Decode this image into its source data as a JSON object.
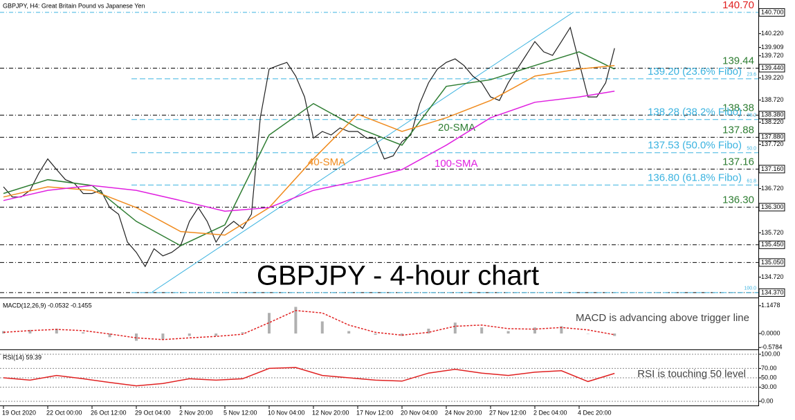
{
  "chart_data": [
    {
      "type": "line",
      "title": "GBPJPY, H4:  Great Britain Pound vs Japanese Yen",
      "heading": "GBPJPY - 4-hour chart",
      "categories": [
        "19 Oct 2020",
        null,
        null,
        null,
        null,
        "22 Oct 00:00",
        null,
        null,
        null,
        null,
        "26 Oct 12:00",
        null,
        null,
        null,
        null,
        "29 Oct 04:00",
        null,
        null,
        null,
        null,
        "2 Nov 20:00",
        null,
        null,
        null,
        null,
        "5 Nov 12:00",
        null,
        null,
        null,
        null,
        "10 Nov 04:00",
        null,
        null,
        null,
        null,
        "12 Nov 20:00",
        null,
        null,
        null,
        null,
        "17 Nov 12:00",
        null,
        null,
        null,
        null,
        "20 Nov 04:00",
        null,
        null,
        null,
        null,
        "24 Nov 20:00",
        null,
        null,
        null,
        null,
        "27 Nov 12:00",
        null,
        null,
        null,
        null,
        "2 Dec 04:00",
        null,
        null,
        null,
        null,
        "4 Dec 20:00",
        null,
        null,
        null,
        null
      ],
      "series": [
        {
          "type": "line",
          "color": "#1f1f1f",
          "values": [
            136.76,
            136.53,
            136.53,
            136.68,
            137.07,
            137.39,
            137.15,
            136.92,
            136.84,
            136.61,
            136.61,
            136.68,
            136.29,
            136.14,
            135.51,
            135.28,
            134.96,
            135.36,
            135.2,
            135.28,
            135.43,
            135.98,
            136.29,
            135.98,
            135.51,
            135.82,
            135.98,
            135.82,
            136.14,
            138.32,
            139.42,
            139.5,
            139.57,
            139.26,
            138.79,
            137.86,
            138.01,
            137.93,
            138.09,
            138.01,
            138.01,
            137.86,
            137.86,
            137.39,
            137.46,
            137.78,
            137.93,
            138.64,
            139.11,
            139.42,
            139.57,
            139.65,
            139.5,
            139.26,
            139.11,
            138.79,
            138.71,
            139.11,
            139.42,
            139.73,
            140.04,
            139.81,
            139.73,
            140.04,
            140.36,
            139.57,
            138.79,
            138.79,
            139.11,
            139.89
          ]
        },
        {
          "type": "line",
          "name": "20-SMA",
          "color": "#2e7d32",
          "x": [
            0,
            5,
            10,
            15,
            20,
            25,
            30,
            35,
            40,
            45,
            50,
            55,
            60,
            65,
            69
          ],
          "values": [
            136.61,
            136.92,
            136.79,
            135.98,
            135.43,
            135.9,
            137.93,
            138.64,
            138.09,
            137.7,
            139.03,
            139.18,
            139.5,
            139.81,
            139.42
          ]
        },
        {
          "type": "line",
          "name": "40-SMA",
          "color": "#f08a1c",
          "x": [
            0,
            5,
            10,
            15,
            20,
            25,
            30,
            35,
            40,
            45,
            50,
            55,
            60,
            65,
            69
          ],
          "values": [
            136.53,
            136.76,
            136.68,
            136.29,
            135.75,
            135.67,
            136.29,
            137.39,
            138.4,
            138.01,
            138.32,
            138.71,
            139.26,
            139.42,
            139.5
          ]
        },
        {
          "type": "line",
          "name": "100-SMA",
          "color": "#e020e0",
          "x": [
            0,
            5,
            10,
            15,
            20,
            25,
            30,
            35,
            40,
            45,
            50,
            55,
            60,
            65,
            69
          ],
          "values": [
            136.45,
            136.68,
            136.79,
            136.68,
            136.45,
            136.21,
            136.29,
            136.68,
            136.89,
            137.15,
            137.7,
            138.32,
            138.67,
            138.79,
            138.92
          ]
        }
      ],
      "ylim": [
        134.29,
        140.98
      ],
      "yticks": [
        {
          "value": 140.7,
          "label": "140.700"
        },
        {
          "value": 140.22,
          "label": "140.220"
        },
        139.909,
        {
          "value": 139.72,
          "label": "139.720"
        },
        {
          "value": 139.44,
          "label": "139.440"
        },
        {
          "value": 139.22,
          "label": "139.220"
        },
        {
          "value": 138.72,
          "label": "138.720"
        },
        {
          "value": 138.38,
          "label": "138.380"
        },
        {
          "value": 138.22,
          "label": "138.220"
        },
        {
          "value": 137.88,
          "label": "137.880"
        },
        {
          "value": 137.72,
          "label": "137.720"
        },
        {
          "value": 137.16,
          "label": "137.160"
        },
        {
          "value": 136.72,
          "label": "136.720"
        },
        {
          "value": 136.3,
          "label": "136.300"
        },
        {
          "value": 135.72,
          "label": "135.720"
        },
        {
          "value": 135.45,
          "label": "135.450"
        },
        {
          "value": 135.05,
          "label": "135.050"
        },
        {
          "value": 134.72,
          "label": "134.720"
        },
        {
          "value": 134.37,
          "label": "134.370"
        }
      ],
      "levels": [
        {
          "value": 140.7,
          "label": "140.70",
          "color": "#e02020"
        },
        {
          "value": 139.44,
          "label": "139.44",
          "color": "#2e7d32"
        },
        {
          "value": 138.38,
          "label": "138.38",
          "color": "#2e7d32"
        },
        {
          "value": 137.88,
          "label": "137.88",
          "color": "#2e7d32"
        },
        {
          "value": 137.16,
          "label": "137.16",
          "color": "#2e7d32"
        },
        {
          "value": 136.3,
          "label": "136.30",
          "color": "#2e7d32"
        },
        {
          "value": 135.45
        },
        {
          "value": 135.05
        },
        {
          "value": 134.37
        }
      ],
      "fibo_levels": [
        {
          "value": 139.2,
          "label": "139.20 (23.6% Fibo)",
          "ratio_label": "23.6"
        },
        {
          "value": 138.28,
          "label": "138.28 (38.2% Fibo)",
          "ratio_label": "38.2"
        },
        {
          "value": 137.53,
          "label": "137.53 (50.0% Fibo)",
          "ratio_label": "50.0"
        },
        {
          "value": 136.8,
          "label": "136.80 (61.8% Fibo)",
          "ratio_label": "61.8"
        },
        {
          "value": 134.37,
          "ratio_label": "100.0"
        }
      ],
      "fibo_color": "#3bb3e0"
    },
    {
      "type": "bar",
      "title": "MACD(12,26,9) -0.0532 -0.1455",
      "annotation": "MACD is advancing above trigger line",
      "series": [
        {
          "type": "bar",
          "color": "#b0b0b0",
          "x": [
            0,
            3,
            6,
            9,
            12,
            15,
            18,
            21,
            24,
            27,
            30,
            33,
            36,
            39,
            42,
            45,
            48,
            51,
            54,
            57,
            60,
            63,
            66,
            69
          ],
          "values": [
            0.1,
            0.15,
            0.2,
            0.05,
            -0.15,
            -0.3,
            -0.25,
            -0.1,
            -0.1,
            0.05,
            0.85,
            1.1,
            0.5,
            0.1,
            -0.05,
            -0.1,
            0.2,
            0.45,
            0.25,
            0.1,
            0.25,
            0.3,
            0.0,
            -0.1
          ]
        },
        {
          "type": "line",
          "dashed": true,
          "color": "#e02020",
          "x": [
            0,
            3,
            6,
            9,
            12,
            15,
            18,
            21,
            24,
            27,
            30,
            33,
            36,
            39,
            42,
            45,
            48,
            51,
            54,
            57,
            60,
            63,
            66,
            69
          ],
          "values": [
            0.05,
            0.12,
            0.17,
            0.12,
            -0.02,
            -0.18,
            -0.25,
            -0.18,
            -0.12,
            -0.03,
            0.45,
            0.95,
            0.85,
            0.35,
            0.05,
            -0.07,
            0.05,
            0.3,
            0.35,
            0.2,
            0.18,
            0.25,
            0.15,
            -0.05
          ]
        }
      ],
      "ylim": [
        -0.6,
        1.4
      ],
      "yticks": [
        1.1478,
        {
          "value": 0,
          "label": "0.0000"
        },
        -0.5784
      ]
    },
    {
      "type": "line",
      "title": "RSI(14) 59.39",
      "annotation": "RSI is touching 50 level",
      "series": [
        {
          "type": "line",
          "color": "#e02020",
          "x": [
            0,
            3,
            6,
            9,
            12,
            15,
            18,
            21,
            24,
            27,
            30,
            33,
            36,
            39,
            42,
            45,
            48,
            51,
            54,
            57,
            60,
            63,
            66,
            69
          ],
          "values": [
            50,
            45,
            55,
            48,
            40,
            33,
            38,
            48,
            45,
            48,
            70,
            72,
            55,
            50,
            45,
            43,
            60,
            68,
            60,
            55,
            62,
            65,
            42,
            59.39
          ]
        }
      ],
      "ylim": [
        -4.4,
        105.9
      ],
      "yticks": [
        {
          "value": 100,
          "label": "100.00"
        },
        {
          "value": 70,
          "label": "70.00"
        },
        {
          "value": 50,
          "label": "50.00"
        },
        {
          "value": 30,
          "label": "30.00"
        },
        {
          "value": 0,
          "label": "0.00"
        }
      ],
      "grid": true
    }
  ]
}
